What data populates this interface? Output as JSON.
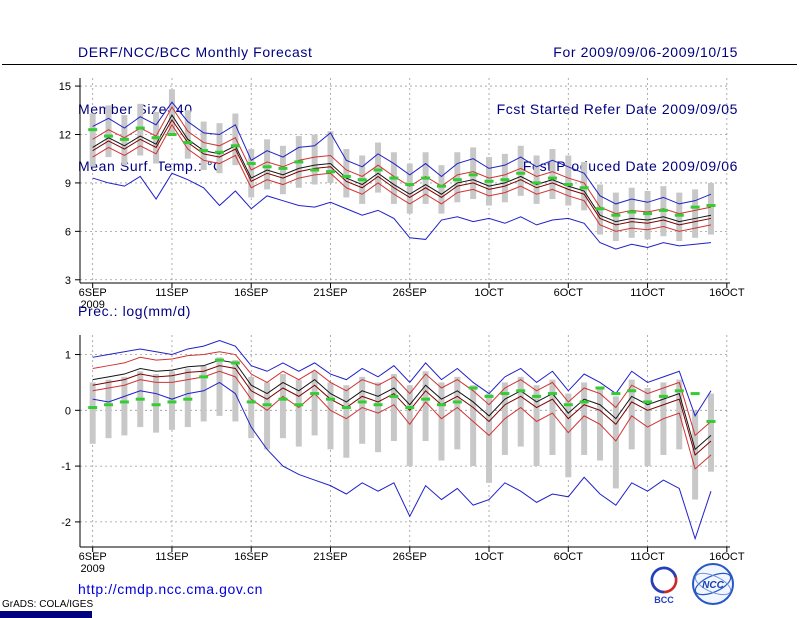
{
  "header": {
    "left": [
      "DERF/NCC/BCC Monthly Forecast",
      "Member Size=40",
      "Mean Surf. Temp.: °C"
    ],
    "right": [
      "For 2009/09/06-2009/10/15",
      "Fcst Started Refer Date 2009/09/05",
      "Fcst Produced Date 2009/09/06"
    ]
  },
  "footer": {
    "url": "http://cmdp.ncc.cma.gov.cn",
    "grads": "GrADS: COLA/IGES",
    "logos": [
      {
        "label": "BCC"
      },
      {
        "label": "NCC"
      }
    ]
  },
  "colors": {
    "header_navy": "#000080",
    "line_blue": "#2020c8",
    "line_red": "#d23232",
    "line_dark_red": "#800000",
    "line_black": "#141414",
    "obs_green": "#33cc33",
    "bar_gray": "#c8c8c8",
    "grid_gray": "#9a9a9a",
    "url_blue": "#0000dc"
  },
  "chart_data": [
    {
      "type": "line",
      "title": "Mean Surf. Temp.: °C",
      "xlabel": "",
      "ylabel": "°C",
      "xlim": [
        -0.8,
        40.2
      ],
      "ylim": [
        2.8,
        15.5
      ],
      "yticks": [
        15,
        12,
        9,
        6,
        3
      ],
      "xticks": [
        {
          "pos": 0,
          "label": "6SEP",
          "sub": "2009"
        },
        {
          "pos": 5,
          "label": "11SEP"
        },
        {
          "pos": 10,
          "label": "16SEP"
        },
        {
          "pos": 15,
          "label": "21SEP"
        },
        {
          "pos": 20,
          "label": "26SEP"
        },
        {
          "pos": 25,
          "label": "1OCT"
        },
        {
          "pos": 30,
          "label": "6OCT"
        },
        {
          "pos": 35,
          "label": "11OCT"
        },
        {
          "pos": 40,
          "label": "16OCT"
        }
      ],
      "series": [
        {
          "name": "ensemble-range",
          "type": "bar",
          "color": "#c8c8c8",
          "top": [
            13.3,
            13.8,
            13.2,
            13.9,
            13.4,
            14.8,
            13.5,
            12.8,
            12.7,
            13.3,
            11.1,
            11.7,
            11.3,
            11.9,
            12.0,
            12.2,
            11.1,
            10.7,
            11.5,
            10.9,
            10.2,
            10.9,
            10.1,
            10.9,
            11.2,
            10.6,
            10.8,
            11.3,
            10.7,
            11.1,
            10.7,
            10.3,
            8.9,
            8.4,
            8.7,
            8.5,
            8.8,
            8.4,
            8.6,
            9.0
          ],
          "bottom": [
            10.0,
            10.6,
            10.1,
            10.7,
            10.2,
            12.0,
            10.5,
            9.8,
            9.6,
            10.1,
            8.1,
            8.6,
            8.3,
            8.7,
            8.9,
            9.0,
            8.1,
            7.7,
            8.4,
            7.7,
            7.1,
            7.7,
            7.1,
            7.8,
            8.0,
            7.6,
            7.8,
            8.2,
            7.7,
            8.0,
            7.6,
            7.3,
            5.8,
            5.4,
            5.6,
            5.5,
            5.7,
            5.4,
            5.6,
            5.8
          ]
        },
        {
          "name": "ensemble-max",
          "type": "line",
          "color": "#2020c8",
          "values": [
            12.5,
            13.0,
            12.4,
            13.1,
            12.6,
            14.0,
            12.8,
            12.1,
            12.0,
            12.6,
            10.4,
            11.0,
            10.6,
            11.2,
            11.3,
            12.1,
            10.4,
            10.0,
            10.8,
            10.2,
            9.5,
            10.2,
            9.4,
            10.2,
            10.5,
            9.9,
            10.1,
            10.6,
            10.0,
            10.4,
            10.0,
            9.6,
            8.2,
            7.7,
            8.0,
            7.8,
            8.1,
            7.7,
            7.9,
            8.3
          ]
        },
        {
          "name": "ensemble-min",
          "type": "line",
          "color": "#2020c8",
          "values": [
            9.3,
            9.0,
            8.8,
            9.4,
            8.0,
            9.6,
            9.2,
            8.7,
            7.6,
            8.5,
            7.4,
            8.2,
            7.9,
            7.6,
            7.5,
            7.8,
            7.4,
            7.0,
            7.3,
            6.8,
            5.6,
            5.5,
            6.7,
            6.9,
            6.6,
            6.8,
            6.5,
            6.9,
            6.4,
            6.7,
            6.8,
            6.5,
            5.3,
            4.9,
            5.2,
            5.0,
            5.3,
            5.1,
            5.2,
            5.3
          ]
        },
        {
          "name": "upper-quartile",
          "type": "line",
          "color": "#d23232",
          "values": [
            11.7,
            12.3,
            11.8,
            12.4,
            11.9,
            13.7,
            12.2,
            11.5,
            11.3,
            11.8,
            9.8,
            10.3,
            10.0,
            10.4,
            10.6,
            10.7,
            9.8,
            9.4,
            10.1,
            9.4,
            8.8,
            9.4,
            8.8,
            9.5,
            9.7,
            9.3,
            9.5,
            9.9,
            9.4,
            9.7,
            9.3,
            9.0,
            7.5,
            7.1,
            7.3,
            7.2,
            7.4,
            7.1,
            7.3,
            7.5
          ]
        },
        {
          "name": "lower-quartile",
          "type": "line",
          "color": "#d23232",
          "values": [
            10.6,
            11.2,
            10.7,
            11.3,
            10.8,
            12.6,
            11.1,
            10.4,
            10.2,
            10.7,
            8.7,
            9.2,
            8.9,
            9.3,
            9.5,
            9.6,
            8.7,
            8.3,
            9.0,
            8.3,
            7.7,
            8.3,
            7.7,
            8.4,
            8.6,
            8.2,
            8.4,
            8.8,
            8.3,
            8.6,
            8.2,
            7.9,
            6.4,
            6.0,
            6.2,
            6.1,
            6.3,
            6.0,
            6.2,
            6.4
          ]
        },
        {
          "name": "ensemble-mean",
          "type": "line",
          "color": "#800000",
          "values": [
            11.0,
            11.6,
            11.1,
            11.7,
            11.2,
            12.9,
            11.5,
            10.8,
            10.6,
            11.1,
            9.1,
            9.6,
            9.3,
            9.7,
            9.9,
            10.0,
            9.1,
            8.7,
            9.4,
            8.7,
            8.1,
            8.7,
            8.1,
            8.8,
            9.0,
            8.6,
            8.8,
            9.2,
            8.7,
            9.0,
            8.6,
            8.3,
            6.8,
            6.4,
            6.6,
            6.5,
            6.7,
            6.4,
            6.6,
            6.8
          ]
        },
        {
          "name": "median",
          "type": "line",
          "color": "#141414",
          "values": [
            11.2,
            11.8,
            11.3,
            11.9,
            11.4,
            13.2,
            11.7,
            11.0,
            10.8,
            11.3,
            9.3,
            9.8,
            9.5,
            9.9,
            10.1,
            10.2,
            9.3,
            8.9,
            9.6,
            8.9,
            8.3,
            8.9,
            8.3,
            9.0,
            9.2,
            8.8,
            9.0,
            9.4,
            8.9,
            9.2,
            8.8,
            8.5,
            7.0,
            6.6,
            6.8,
            6.7,
            6.9,
            6.6,
            6.8,
            7.0
          ]
        },
        {
          "name": "observation",
          "type": "dash",
          "color": "#33cc33",
          "values": [
            12.3,
            11.9,
            11.7,
            12.4,
            11.8,
            12.0,
            11.5,
            11.0,
            10.9,
            11.3,
            10.2,
            10.0,
            9.9,
            10.3,
            9.8,
            9.7,
            9.4,
            9.2,
            9.8,
            9.3,
            8.9,
            9.3,
            8.8,
            9.2,
            9.5,
            9.1,
            9.2,
            9.6,
            9.0,
            9.3,
            8.9,
            8.7,
            7.4,
            7.0,
            7.2,
            7.1,
            7.3,
            7.0,
            7.5,
            7.6
          ]
        }
      ]
    },
    {
      "type": "line",
      "title": "Prec.: log(mm/d)",
      "xlabel": "",
      "ylabel": "log(mm/d)",
      "xlim": [
        -0.8,
        40.2
      ],
      "ylim": [
        -2.45,
        1.35
      ],
      "yticks": [
        1,
        0,
        -1,
        -2
      ],
      "xticks": [
        {
          "pos": 0,
          "label": "6SEP",
          "sub": "2009"
        },
        {
          "pos": 5,
          "label": "11SEP"
        },
        {
          "pos": 10,
          "label": "16SEP"
        },
        {
          "pos": 15,
          "label": "21SEP"
        },
        {
          "pos": 20,
          "label": "26SEP"
        },
        {
          "pos": 25,
          "label": "1OCT"
        },
        {
          "pos": 30,
          "label": "6OCT"
        },
        {
          "pos": 35,
          "label": "11OCT"
        },
        {
          "pos": 40,
          "label": "16OCT"
        }
      ],
      "series": [
        {
          "name": "ensemble-range",
          "type": "bar",
          "color": "#c8c8c8",
          "top": [
            0.5,
            0.55,
            0.6,
            0.7,
            0.65,
            0.7,
            0.75,
            0.8,
            0.95,
            0.9,
            0.6,
            0.5,
            0.65,
            0.55,
            0.7,
            0.5,
            0.45,
            0.6,
            0.5,
            0.65,
            0.45,
            0.7,
            0.5,
            0.6,
            0.45,
            0.3,
            0.5,
            0.6,
            0.45,
            0.55,
            0.3,
            0.5,
            0.4,
            0.25,
            0.55,
            0.4,
            0.5,
            0.55,
            0.0,
            0.3
          ],
          "bottom": [
            -0.6,
            -0.5,
            -0.45,
            -0.3,
            -0.4,
            -0.35,
            -0.3,
            -0.2,
            -0.1,
            -0.2,
            -0.5,
            -0.7,
            -0.5,
            -0.65,
            -0.45,
            -0.7,
            -0.85,
            -0.6,
            -0.75,
            -0.55,
            -1.0,
            -0.55,
            -0.9,
            -0.7,
            -1.0,
            -1.3,
            -0.8,
            -0.65,
            -1.0,
            -0.8,
            -1.2,
            -0.8,
            -0.9,
            -1.4,
            -0.7,
            -1.0,
            -0.8,
            -0.7,
            -1.6,
            -1.1
          ]
        },
        {
          "name": "ensemble-max",
          "type": "line",
          "color": "#2020c8",
          "values": [
            0.95,
            1.0,
            1.05,
            1.1,
            1.05,
            1.0,
            1.1,
            1.15,
            1.25,
            1.15,
            0.8,
            0.7,
            0.85,
            0.7,
            0.85,
            0.65,
            0.55,
            0.75,
            0.6,
            0.8,
            0.5,
            0.85,
            0.55,
            0.75,
            0.5,
            0.3,
            0.6,
            0.75,
            0.5,
            0.7,
            0.35,
            0.65,
            0.5,
            0.3,
            0.7,
            0.5,
            0.6,
            0.7,
            -0.1,
            0.35
          ]
        },
        {
          "name": "ensemble-min",
          "type": "line",
          "color": "#2020c8",
          "values": [
            0.2,
            0.15,
            0.25,
            0.35,
            0.3,
            0.2,
            0.3,
            0.35,
            0.5,
            0.3,
            -0.3,
            -0.7,
            -1.0,
            -1.15,
            -1.25,
            -1.35,
            -1.5,
            -1.3,
            -1.45,
            -1.3,
            -1.9,
            -1.35,
            -1.6,
            -1.4,
            -1.7,
            -1.6,
            -1.3,
            -1.45,
            -1.65,
            -1.5,
            -1.55,
            -1.2,
            -1.5,
            -1.7,
            -1.3,
            -1.45,
            -1.25,
            -1.4,
            -2.3,
            -1.45
          ]
        },
        {
          "name": "upper-quartile",
          "type": "line",
          "color": "#d23232",
          "values": [
            0.75,
            0.8,
            0.85,
            0.95,
            0.9,
            0.92,
            0.98,
            1.0,
            1.05,
            1.0,
            0.65,
            0.5,
            0.7,
            0.55,
            0.72,
            0.5,
            0.35,
            0.55,
            0.45,
            0.6,
            0.3,
            0.65,
            0.4,
            0.55,
            0.35,
            0.1,
            0.4,
            0.55,
            0.35,
            0.5,
            0.15,
            0.4,
            0.3,
            0.05,
            0.45,
            0.3,
            0.4,
            0.5,
            -0.45,
            -0.2
          ]
        },
        {
          "name": "lower-quartile",
          "type": "line",
          "color": "#d23232",
          "values": [
            0.35,
            0.4,
            0.45,
            0.55,
            0.5,
            0.5,
            0.55,
            0.6,
            0.7,
            0.6,
            0.2,
            0.0,
            0.25,
            0.05,
            0.3,
            0.0,
            -0.15,
            0.05,
            -0.05,
            0.1,
            -0.25,
            0.15,
            -0.15,
            0.05,
            -0.2,
            -0.45,
            -0.15,
            0.05,
            -0.2,
            -0.05,
            -0.4,
            -0.1,
            -0.25,
            -0.55,
            -0.1,
            -0.3,
            -0.15,
            -0.05,
            -1.05,
            -0.8
          ]
        },
        {
          "name": "ensemble-mean",
          "type": "line",
          "color": "#800000",
          "values": [
            0.45,
            0.5,
            0.55,
            0.65,
            0.6,
            0.62,
            0.68,
            0.7,
            0.8,
            0.75,
            0.35,
            0.2,
            0.4,
            0.25,
            0.45,
            0.2,
            0.05,
            0.25,
            0.15,
            0.3,
            0.0,
            0.35,
            0.1,
            0.25,
            0.05,
            -0.2,
            0.1,
            0.25,
            0.05,
            0.2,
            -0.15,
            0.1,
            0.0,
            -0.25,
            0.15,
            0.0,
            0.1,
            0.2,
            -0.8,
            -0.55
          ]
        },
        {
          "name": "median",
          "type": "line",
          "color": "#141414",
          "values": [
            0.55,
            0.6,
            0.65,
            0.75,
            0.7,
            0.72,
            0.78,
            0.8,
            0.9,
            0.85,
            0.45,
            0.3,
            0.5,
            0.35,
            0.55,
            0.3,
            0.15,
            0.35,
            0.25,
            0.4,
            0.1,
            0.45,
            0.2,
            0.35,
            0.15,
            -0.1,
            0.2,
            0.35,
            0.15,
            0.3,
            -0.05,
            0.2,
            0.1,
            -0.15,
            0.25,
            0.1,
            0.2,
            0.3,
            -0.7,
            -0.45
          ]
        },
        {
          "name": "observation",
          "type": "dash",
          "color": "#33cc33",
          "values": [
            0.05,
            0.1,
            0.15,
            0.2,
            0.1,
            0.15,
            0.2,
            0.6,
            0.9,
            0.85,
            0.15,
            0.1,
            0.2,
            0.1,
            0.3,
            0.2,
            0.05,
            0.15,
            0.1,
            0.25,
            0.05,
            0.2,
            0.1,
            0.15,
            0.4,
            0.25,
            0.3,
            0.35,
            0.25,
            0.3,
            0.1,
            0.15,
            0.4,
            0.3,
            0.35,
            0.15,
            0.25,
            0.35,
            0.3,
            -0.2
          ]
        }
      ]
    }
  ]
}
